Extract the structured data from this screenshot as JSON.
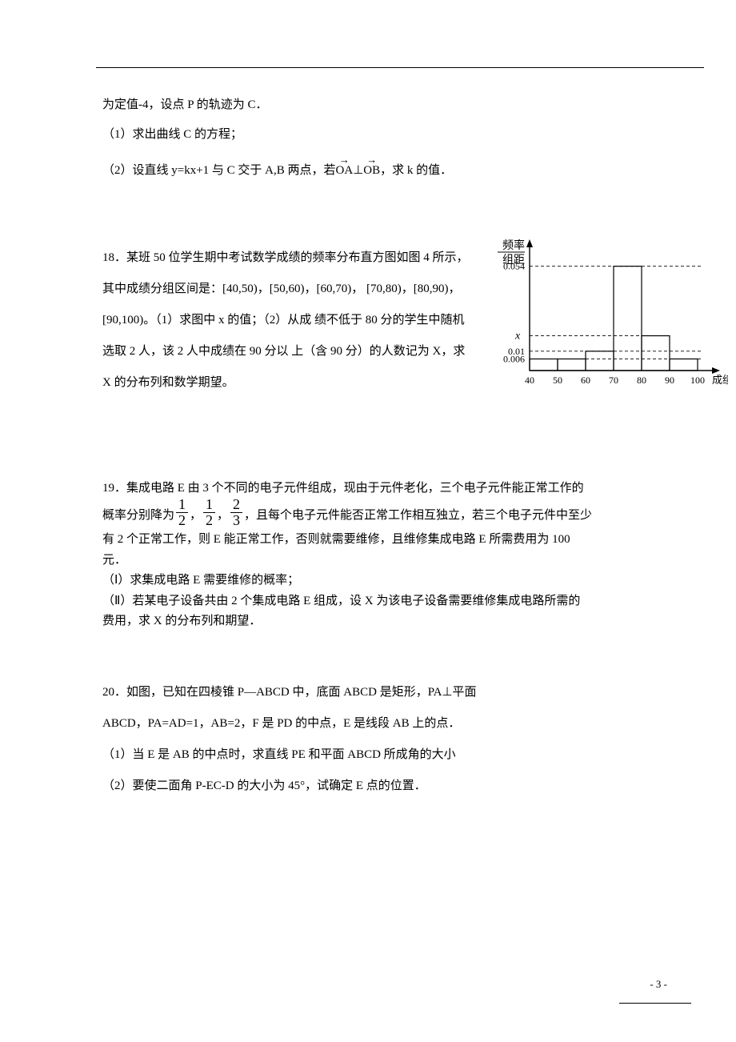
{
  "p17": {
    "l1": "为定值-4，设点 P 的轨迹为 C．",
    "l2": "（1）求出曲线 C 的方程；",
    "l3a": "（2）设直线 y=kx+1 与 C 交于 A,B 两点，若",
    "vecOA": "OA",
    "perp": "⊥",
    "vecOB": "OB",
    "l3b": "，求 k 的值．"
  },
  "p18": {
    "l1": "18．某班 50 位学生期中考试数学成绩的频率分布直方图如图 4",
    "l2": "所示，其中成绩分组区间是：[40,50)，[50,60)，[60,70)，",
    "l3": "[70,80)，[80,90)，[90,100)。（1）求图中 x 的值；（2）从成",
    "l4": "绩不低于 80 分的学生中随机选取 2 人，该 2 人中成绩在 90 分以",
    "l5": "上（含 90 分）的人数记为 X，求 X 的分布列和数学期望。"
  },
  "hist": {
    "ylabel_top": "频率",
    "ylabel_bot": "组距",
    "y_ticks": [
      "0.054",
      "0.01",
      "0.006"
    ],
    "x_ticks": [
      "40",
      "50",
      "60",
      "70",
      "80",
      "90",
      "100"
    ],
    "xlabel": "成绩",
    "x_var": "x",
    "bars": [
      {
        "x": 40,
        "h": 0.006
      },
      {
        "x": 50,
        "h": 0.006
      },
      {
        "x": 60,
        "h": 0.01
      },
      {
        "x": 70,
        "h": 0.054
      },
      {
        "x": 80,
        "h": 0.018
      },
      {
        "x": 90,
        "h": 0.006
      }
    ],
    "colors": {
      "axis": "#000000",
      "dash": "#000000",
      "bar_stroke": "#000000",
      "text": "#000000",
      "bg": "#ffffff"
    }
  },
  "p19": {
    "l1": "19．集成电路 E 由 3 个不同的电子元件组成，现由于元件老化，三个电子元件能正常工作的",
    "l2a": "概率分别降为",
    "f1n": "1",
    "f1d": "2",
    "sep1": "，",
    "f2n": "1",
    "f2d": "2",
    "sep2": "，",
    "f3n": "2",
    "f3d": "3",
    "l2b": "，且每个电子元件能否正常工作相互独立，若三个电子元件中至少",
    "l3": "有 2 个正常工作，则 E 能正常工作，否则就需要维修，且维修集成电路 E 所需费用为 100",
    "l4": "元．",
    "l5": "（Ⅰ）求集成电路 E 需要维修的概率；",
    "l6": "（Ⅱ）若某电子设备共由 2 个集成电路 E 组成，设 X 为该电子设备需要维修集成电路所需的",
    "l7": "费用，求 X 的分布列和期望．"
  },
  "p20": {
    "l1": "20．如图，已知在四棱锥 P—ABCD 中，底面 ABCD 是矩形，PA⊥平面",
    "l2": "ABCD，PA=AD=1，AB=2，F 是 PD 的中点，E 是线段 AB 上的点．",
    "l3": "（1）当 E 是 AB 的中点时，求直线 PE 和平面 ABCD 所成角的大小",
    "l4": "（2）要使二面角 P-EC-D 的大小为 45°，试确定 E 点的位置．"
  },
  "pagenum": "- 3 -"
}
